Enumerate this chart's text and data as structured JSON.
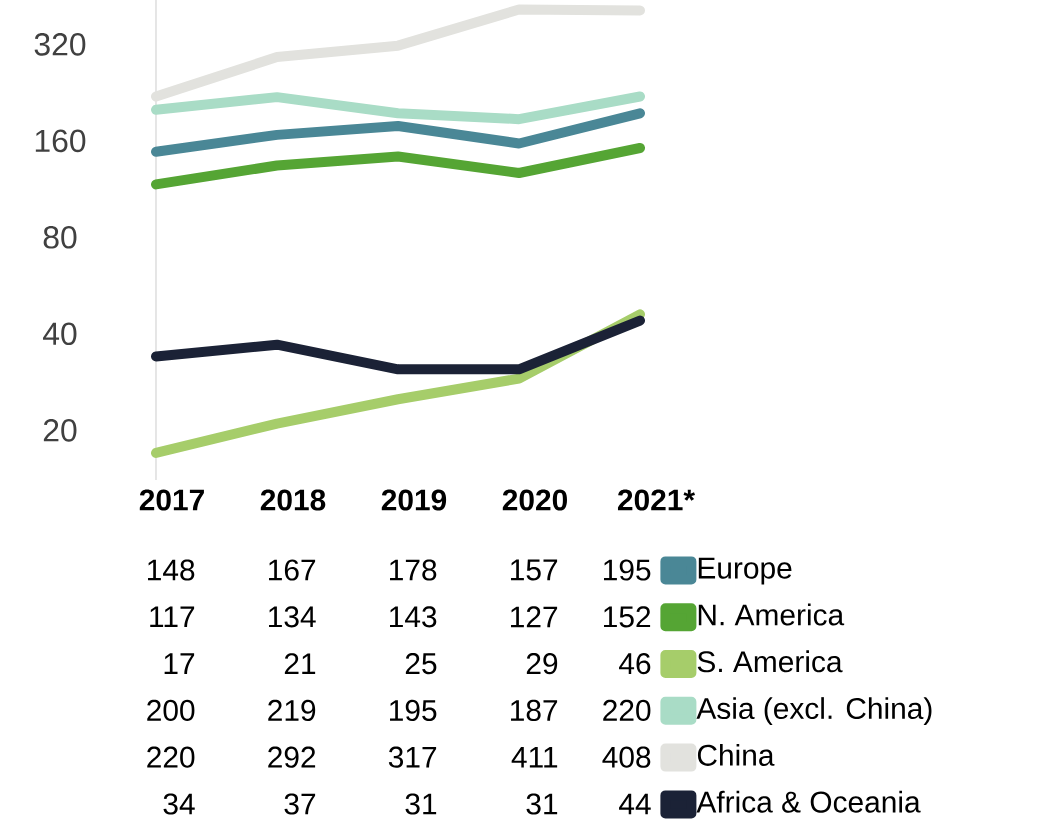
{
  "chart_data": {
    "type": "line",
    "log": "y",
    "ylim": [
      14,
      440
    ],
    "yticks": [
      20,
      40,
      80,
      160,
      320
    ],
    "categories": [
      "2017",
      "2018",
      "2019",
      "2020",
      "2021*"
    ],
    "data_labels": true,
    "legend": "bottom right",
    "series": [
      {
        "name": "Europe",
        "color": "#4a8796",
        "values": [
          148,
          167,
          178,
          157,
          195
        ]
      },
      {
        "name": "N. America",
        "color": "#55a534",
        "values": [
          117,
          134,
          143,
          127,
          152
        ]
      },
      {
        "name": "S. America",
        "color": "#a6cd6a",
        "values": [
          17,
          21,
          25,
          29,
          46
        ]
      },
      {
        "name": "Asia (excl. China)",
        "color": "#a9dcc6",
        "values": [
          200,
          219,
          195,
          187,
          220
        ]
      },
      {
        "name": "China",
        "color": "#e2e2de",
        "values": [
          220,
          292,
          317,
          411,
          408
        ]
      },
      {
        "name": "Africa & Oceania",
        "color": "#1b2236",
        "values": [
          34,
          37,
          31,
          31,
          44
        ]
      }
    ]
  }
}
